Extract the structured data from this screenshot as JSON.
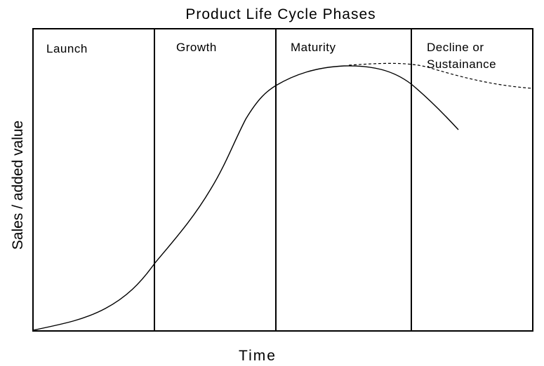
{
  "title": "Product Life Cycle Phases",
  "x_axis_label": "Time",
  "y_axis_label": "Sales / added value",
  "phases": [
    {
      "label_lines": [
        "Launch"
      ]
    },
    {
      "label_lines": [
        "Growth"
      ]
    },
    {
      "label_lines": [
        "Maturity"
      ]
    },
    {
      "label_lines": [
        "Decline or",
        "Sustainance"
      ]
    }
  ],
  "colors": {
    "line": "#000000",
    "background": "#ffffff"
  }
}
